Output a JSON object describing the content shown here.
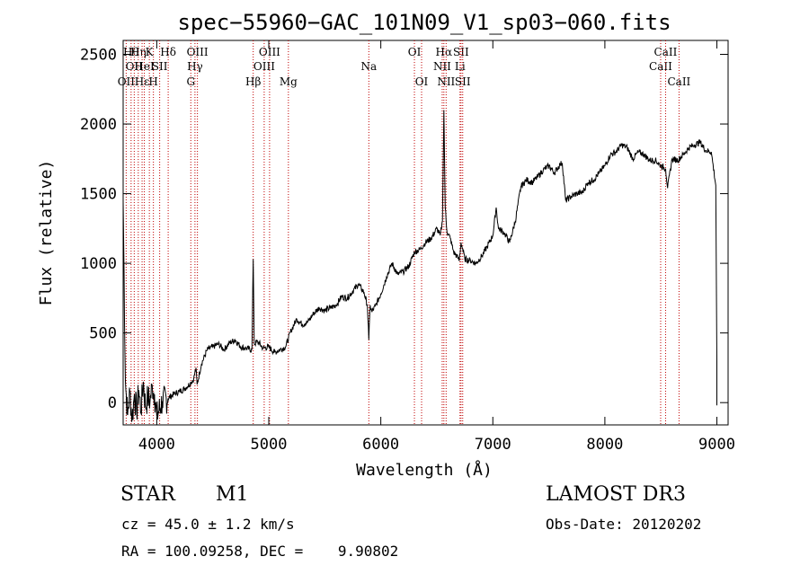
{
  "chart_data": {
    "type": "line",
    "title": "spec−55960−GAC_101N09_V1_sp03−060.fits",
    "xlabel": "Wavelength (Å)",
    "ylabel": "Flux (relative)",
    "xlim": [
      3700,
      9100
    ],
    "ylim": [
      -160,
      2600
    ],
    "xticks": [
      4000,
      5000,
      6000,
      7000,
      8000,
      9000
    ],
    "yticks": [
      0,
      500,
      1000,
      1500,
      2000,
      2500
    ],
    "series": [
      {
        "name": "flux",
        "x": [
          3700,
          3720,
          3740,
          3760,
          3780,
          3800,
          3820,
          3840,
          3860,
          3880,
          3900,
          3920,
          3940,
          3960,
          3980,
          4000,
          4050,
          4100,
          4150,
          4200,
          4250,
          4300,
          4330,
          4350,
          4360,
          4400,
          4450,
          4500,
          4550,
          4600,
          4650,
          4700,
          4750,
          4800,
          4850,
          4861,
          4870,
          4900,
          4950,
          5000,
          5050,
          5100,
          5150,
          5200,
          5250,
          5300,
          5350,
          5400,
          5450,
          5500,
          5550,
          5600,
          5650,
          5700,
          5750,
          5800,
          5850,
          5880,
          5893,
          5905,
          5920,
          5950,
          6000,
          6050,
          6100,
          6150,
          6200,
          6250,
          6300,
          6350,
          6400,
          6450,
          6500,
          6530,
          6550,
          6563,
          6575,
          6590,
          6620,
          6650,
          6680,
          6700,
          6716,
          6731,
          6750,
          6800,
          6850,
          6900,
          6950,
          7000,
          7030,
          7050,
          7100,
          7150,
          7200,
          7250,
          7300,
          7350,
          7400,
          7450,
          7500,
          7550,
          7600,
          7620,
          7650,
          7700,
          7750,
          7800,
          7850,
          7900,
          7950,
          8000,
          8050,
          8100,
          8150,
          8200,
          8250,
          8300,
          8350,
          8400,
          8450,
          8500,
          8542,
          8560,
          8600,
          8650,
          8700,
          8750,
          8800,
          8850,
          8900,
          8950,
          8990,
          9000
        ],
        "values": [
          1450,
          150,
          -90,
          80,
          -120,
          60,
          -70,
          90,
          -60,
          150,
          -30,
          40,
          10,
          120,
          60,
          -100,
          10,
          30,
          60,
          80,
          100,
          140,
          170,
          250,
          130,
          280,
          380,
          400,
          420,
          380,
          430,
          450,
          400,
          390,
          380,
          1030,
          420,
          440,
          390,
          400,
          360,
          380,
          400,
          520,
          600,
          560,
          580,
          640,
          680,
          660,
          680,
          700,
          760,
          750,
          800,
          850,
          790,
          700,
          450,
          700,
          650,
          690,
          780,
          900,
          1000,
          920,
          940,
          980,
          1080,
          1100,
          1150,
          1180,
          1250,
          1200,
          1300,
          2100,
          1400,
          1230,
          1180,
          1080,
          1050,
          1020,
          1150,
          1100,
          1030,
          1020,
          1000,
          1050,
          1120,
          1200,
          1400,
          1250,
          1220,
          1150,
          1300,
          1550,
          1600,
          1580,
          1620,
          1670,
          1700,
          1650,
          1710,
          1720,
          1450,
          1480,
          1500,
          1510,
          1580,
          1600,
          1650,
          1700,
          1780,
          1800,
          1850,
          1830,
          1750,
          1800,
          1780,
          1740,
          1740,
          1700,
          1680,
          1540,
          1750,
          1740,
          1780,
          1830,
          1850,
          1870,
          1810,
          1800,
          1560,
          300
        ]
      }
    ],
    "line_markers": [
      {
        "wl": 3727,
        "row": 3,
        "label": "OII"
      },
      {
        "wl": 3771,
        "row": 1,
        "label": "Hθ"
      },
      {
        "wl": 3799,
        "row": 2,
        "label": "OII"
      },
      {
        "wl": 3835,
        "row": 1,
        "label": "Hη"
      },
      {
        "wl": 3869,
        "row": 3,
        "label": "Hε"
      },
      {
        "wl": 3889,
        "row": 2,
        "label": "HeI"
      },
      {
        "wl": 3934,
        "row": 1,
        "label": "K"
      },
      {
        "wl": 3970,
        "row": 3,
        "label": "H"
      },
      {
        "wl": 4026,
        "row": 2,
        "label": "SII"
      },
      {
        "wl": 4102,
        "row": 1,
        "label": "Hδ"
      },
      {
        "wl": 4304,
        "row": 3,
        "label": "G"
      },
      {
        "wl": 4341,
        "row": 2,
        "label": "Hγ"
      },
      {
        "wl": 4363,
        "row": 1,
        "label": "OIII"
      },
      {
        "wl": 4861,
        "row": 3,
        "label": "Hβ"
      },
      {
        "wl": 4959,
        "row": 2,
        "label": "OIII"
      },
      {
        "wl": 5007,
        "row": 1,
        "label": "OIII"
      },
      {
        "wl": 5175,
        "row": 3,
        "label": "Mg"
      },
      {
        "wl": 5893,
        "row": 2,
        "label": "Na"
      },
      {
        "wl": 6300,
        "row": 1,
        "label": "OI"
      },
      {
        "wl": 6364,
        "row": 3,
        "label": "OI"
      },
      {
        "wl": 6548,
        "row": 2,
        "label": "NII"
      },
      {
        "wl": 6563,
        "row": 1,
        "label": "Hα"
      },
      {
        "wl": 6583,
        "row": 3,
        "label": "NII"
      },
      {
        "wl": 6707,
        "row": 2,
        "label": "Li"
      },
      {
        "wl": 6716,
        "row": 1,
        "label": "SII"
      },
      {
        "wl": 6731,
        "row": 3,
        "label": "SII"
      },
      {
        "wl": 8498,
        "row": 2,
        "label": "CaII"
      },
      {
        "wl": 8542,
        "row": 1,
        "label": "CaII"
      },
      {
        "wl": 8662,
        "row": 3,
        "label": "CaII"
      }
    ]
  },
  "info": {
    "class": "STAR",
    "subclass": "M1",
    "survey": "LAMOST DR3",
    "cz": "cz = 45.0 ± 1.2 km/s",
    "obs_date": "Obs-Date: 20120202",
    "radec": "RA = 100.09258, DEC =    9.90802"
  }
}
